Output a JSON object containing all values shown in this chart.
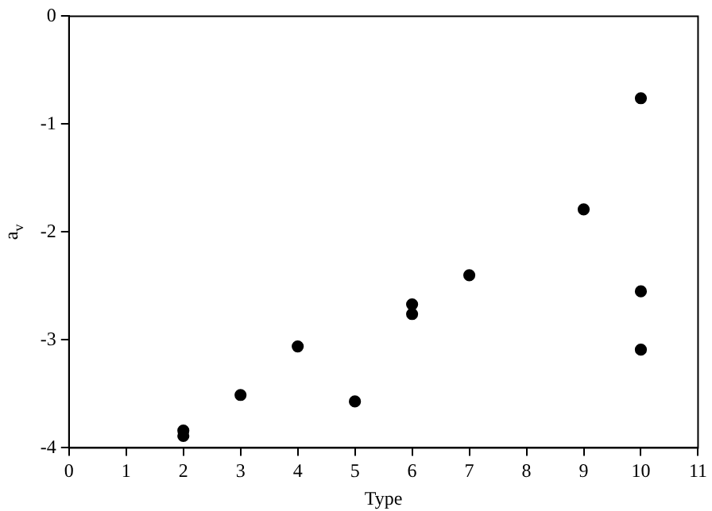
{
  "chart_data": {
    "type": "scatter",
    "xlabel": "Type",
    "ylabel": "a$_{v}$",
    "x": [
      2,
      2,
      3,
      4,
      5,
      6,
      6,
      7,
      9,
      10,
      10,
      10
    ],
    "values": [
      -3.84,
      -3.89,
      -3.51,
      -3.06,
      -3.57,
      -2.67,
      -2.76,
      -2.4,
      -1.79,
      -0.76,
      -2.55,
      -3.09
    ],
    "color": "#000000",
    "marker": "circle",
    "xlim": [
      0,
      11
    ],
    "xticks": [
      0,
      1,
      2,
      3,
      4,
      5,
      6,
      7,
      8,
      9,
      10,
      11
    ],
    "ylim": [
      -4,
      0
    ],
    "yticks": [
      -4,
      -3,
      -2,
      -1,
      0
    ],
    "grid": false,
    "legend": false
  }
}
